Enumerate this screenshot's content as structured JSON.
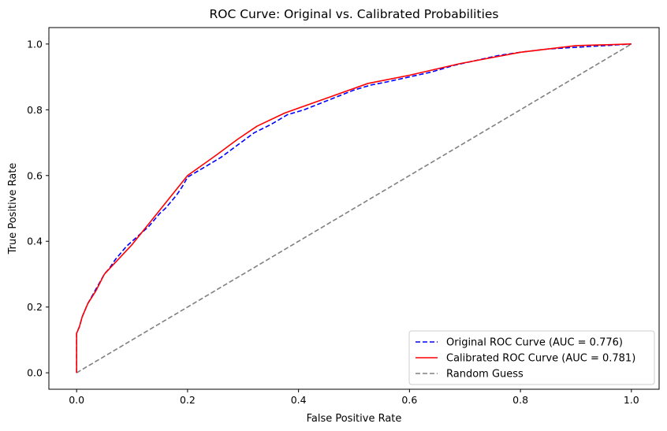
{
  "chart_data": {
    "type": "line",
    "title": "ROC Curve: Original vs. Calibrated Probabilities",
    "xlabel": "False Positive Rate",
    "ylabel": "True Positive Rate",
    "xlim": [
      -0.05,
      1.05
    ],
    "ylim": [
      -0.05,
      1.05
    ],
    "xticks": [
      0.0,
      0.2,
      0.4,
      0.6,
      0.8,
      1.0
    ],
    "xtick_labels": [
      "0.0",
      "0.2",
      "0.4",
      "0.6",
      "0.8",
      "1.0"
    ],
    "yticks": [
      0.0,
      0.2,
      0.4,
      0.6,
      0.8,
      1.0
    ],
    "ytick_labels": [
      "0.0",
      "0.2",
      "0.4",
      "0.6",
      "0.8",
      "1.0"
    ],
    "grid": false,
    "legend_position": "lower-right",
    "series": [
      {
        "name": "Original ROC Curve (AUC = 0.776)",
        "color": "#0000ff",
        "style": "dashed",
        "x": [
          0.0,
          0.0,
          0.005,
          0.01,
          0.02,
          0.03,
          0.04,
          0.05,
          0.06,
          0.07,
          0.08,
          0.09,
          0.1,
          0.11,
          0.12,
          0.13,
          0.14,
          0.15,
          0.16,
          0.17,
          0.18,
          0.19,
          0.2,
          0.22,
          0.24,
          0.26,
          0.28,
          0.3,
          0.32,
          0.35,
          0.38,
          0.41,
          0.44,
          0.47,
          0.5,
          0.53,
          0.56,
          0.6,
          0.64,
          0.68,
          0.72,
          0.76,
          0.8,
          0.85,
          0.9,
          0.95,
          1.0
        ],
        "y": [
          0.0,
          0.12,
          0.14,
          0.17,
          0.21,
          0.24,
          0.27,
          0.3,
          0.32,
          0.345,
          0.365,
          0.385,
          0.4,
          0.415,
          0.43,
          0.445,
          0.465,
          0.485,
          0.5,
          0.52,
          0.54,
          0.565,
          0.595,
          0.615,
          0.635,
          0.655,
          0.68,
          0.705,
          0.73,
          0.755,
          0.785,
          0.8,
          0.82,
          0.84,
          0.86,
          0.875,
          0.885,
          0.9,
          0.915,
          0.935,
          0.95,
          0.965,
          0.975,
          0.985,
          0.99,
          0.995,
          1.0
        ]
      },
      {
        "name": "Calibrated ROC Curve (AUC = 0.781)",
        "color": "#ff0000",
        "style": "solid",
        "x": [
          0.0,
          0.0,
          0.005,
          0.01,
          0.02,
          0.035,
          0.05,
          0.075,
          0.1,
          0.15,
          0.2,
          0.25,
          0.29,
          0.325,
          0.375,
          0.45,
          0.525,
          0.6,
          0.69,
          0.8,
          0.9,
          1.0
        ],
        "y": [
          0.0,
          0.12,
          0.14,
          0.17,
          0.21,
          0.25,
          0.3,
          0.345,
          0.39,
          0.495,
          0.6,
          0.66,
          0.71,
          0.75,
          0.79,
          0.835,
          0.88,
          0.905,
          0.94,
          0.975,
          0.995,
          1.0
        ]
      },
      {
        "name": "Random Guess",
        "color": "#808080",
        "style": "dashed",
        "x": [
          0.0,
          1.0
        ],
        "y": [
          0.0,
          1.0
        ]
      }
    ]
  }
}
